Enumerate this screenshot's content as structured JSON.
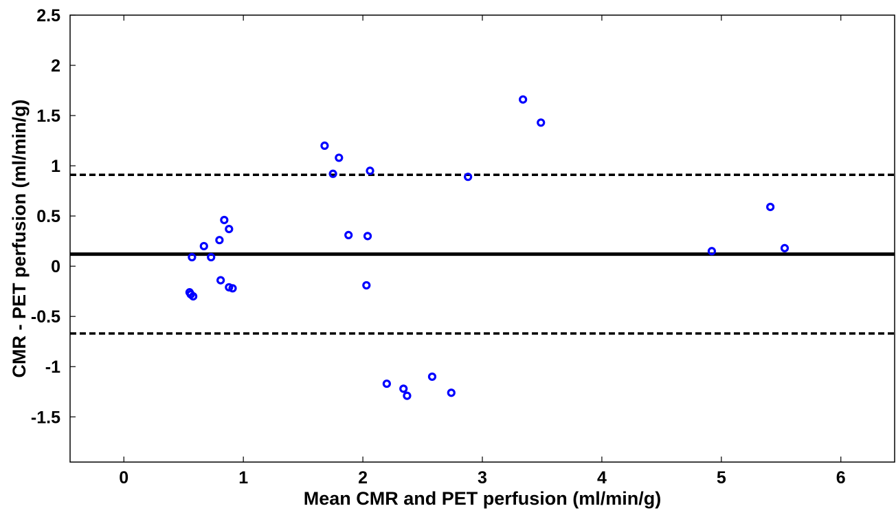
{
  "chart_data": {
    "type": "scatter",
    "title": "",
    "xlabel": "Mean CMR and PET perfusion (ml/min/g)",
    "ylabel": "CMR - PET perfusion (ml/min/g)",
    "xlim": [
      -0.45,
      6.45
    ],
    "ylim": [
      -1.95,
      2.5
    ],
    "x_ticks": [
      0,
      1,
      2,
      3,
      4,
      5,
      6
    ],
    "x_tick_labels": [
      "0",
      "1",
      "2",
      "3",
      "4",
      "5",
      "6"
    ],
    "y_ticks": [
      2.5,
      2,
      1.5,
      1,
      0.5,
      0,
      -0.5,
      -1,
      -1.5
    ],
    "y_tick_labels": [
      "2.5",
      "2",
      "1.5",
      "1",
      "0.5",
      "0",
      "-0.5",
      "-1",
      "-1.5"
    ],
    "grid": false,
    "legend": "none",
    "colors": {
      "points": "#0000ff",
      "lines": "#000000"
    },
    "series": [
      {
        "points": [
          {
            "x": 0.55,
            "y": -0.26
          },
          {
            "x": 0.56,
            "y": -0.28
          },
          {
            "x": 0.57,
            "y": 0.09
          },
          {
            "x": 0.58,
            "y": -0.3
          },
          {
            "x": 0.67,
            "y": 0.2
          },
          {
            "x": 0.73,
            "y": 0.09
          },
          {
            "x": 0.8,
            "y": 0.26
          },
          {
            "x": 0.81,
            "y": -0.14
          },
          {
            "x": 0.84,
            "y": 0.46
          },
          {
            "x": 0.88,
            "y": 0.37
          },
          {
            "x": 0.88,
            "y": -0.21
          },
          {
            "x": 0.91,
            "y": -0.22
          },
          {
            "x": 1.68,
            "y": 1.2
          },
          {
            "x": 1.75,
            "y": 0.92
          },
          {
            "x": 1.8,
            "y": 1.08
          },
          {
            "x": 1.88,
            "y": 0.31
          },
          {
            "x": 2.03,
            "y": -0.19
          },
          {
            "x": 2.04,
            "y": 0.3
          },
          {
            "x": 2.06,
            "y": 0.95
          },
          {
            "x": 2.2,
            "y": -1.17
          },
          {
            "x": 2.34,
            "y": -1.22
          },
          {
            "x": 2.37,
            "y": -1.29
          },
          {
            "x": 2.58,
            "y": -1.1
          },
          {
            "x": 2.74,
            "y": -1.26
          },
          {
            "x": 2.88,
            "y": 0.89
          },
          {
            "x": 3.34,
            "y": 1.66
          },
          {
            "x": 3.49,
            "y": 1.43
          },
          {
            "x": 4.92,
            "y": 0.15
          },
          {
            "x": 5.41,
            "y": 0.59
          },
          {
            "x": 5.53,
            "y": 0.18
          }
        ]
      }
    ],
    "reference_lines": [
      {
        "y": 0.12,
        "style": "solid"
      },
      {
        "y": 0.91,
        "style": "dashed"
      },
      {
        "y": -0.67,
        "style": "dashed"
      }
    ]
  }
}
